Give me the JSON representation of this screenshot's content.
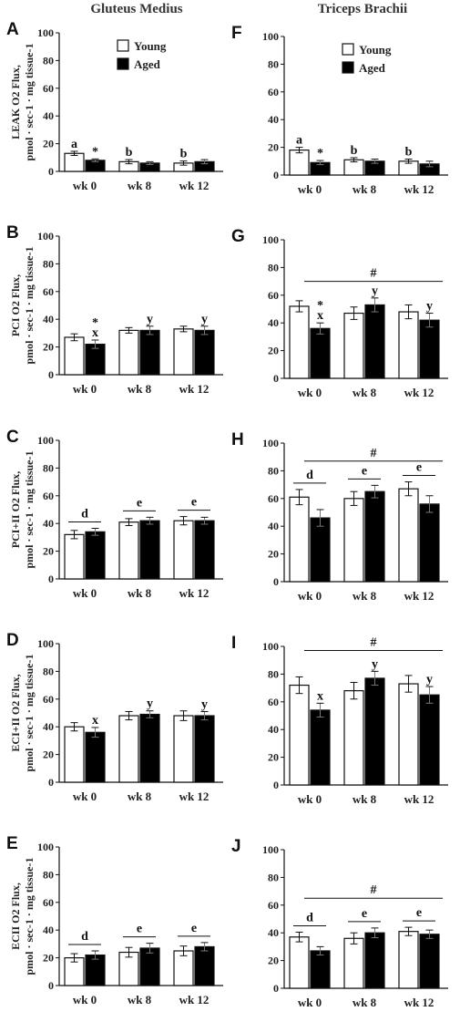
{
  "titles": {
    "left": "Gluteus Medius",
    "right": "Triceps Brachii"
  },
  "legend": {
    "young": "Young",
    "aged": "Aged"
  },
  "colors": {
    "young": "#ffffff",
    "aged": "#000000",
    "axis": "#111111"
  },
  "chart_data": [
    {
      "id": "A",
      "type": "bar",
      "categories": [
        "wk 0",
        "wk 8",
        "wk 12"
      ],
      "ylim": [
        0,
        100
      ],
      "yticks": [
        0,
        20,
        40,
        60,
        80,
        100
      ],
      "ylabel": [
        "LEAK O2 Flux,",
        "pmol · sec-1 · mg tissue-1"
      ],
      "legend": true,
      "series": [
        {
          "name": "Young",
          "values": [
            13,
            7,
            6
          ],
          "err": [
            1.5,
            1.5,
            1.5
          ]
        },
        {
          "name": "Aged",
          "values": [
            8,
            6,
            7
          ],
          "err": [
            1,
            1,
            1.5
          ]
        }
      ],
      "annotations": [
        {
          "cat": 0,
          "series": 0,
          "text": "a"
        },
        {
          "cat": 0,
          "series": 1,
          "text": "*"
        },
        {
          "cat": 1,
          "series": 0,
          "text": "b"
        },
        {
          "cat": 2,
          "series": 0,
          "text": "b"
        }
      ]
    },
    {
      "id": "B",
      "type": "bar",
      "categories": [
        "wk 0",
        "wk 8",
        "wk 12"
      ],
      "ylim": [
        0,
        100
      ],
      "yticks": [
        0,
        20,
        40,
        60,
        80,
        100
      ],
      "ylabel": [
        "PCI O2 Flux,",
        "pmol · sec-1 · mg tissue-1"
      ],
      "series": [
        {
          "name": "Young",
          "values": [
            27,
            32,
            33
          ],
          "err": [
            2.5,
            2,
            2
          ]
        },
        {
          "name": "Aged",
          "values": [
            22,
            32,
            32
          ],
          "err": [
            3,
            3,
            3
          ]
        }
      ],
      "annotations": [
        {
          "cat": 0,
          "series": 1,
          "text": "x"
        },
        {
          "cat": 0,
          "series": 1,
          "text": "*"
        },
        {
          "cat": 1,
          "series": 1,
          "text": "y"
        },
        {
          "cat": 2,
          "series": 1,
          "text": "y"
        }
      ]
    },
    {
      "id": "C",
      "type": "bar",
      "categories": [
        "wk 0",
        "wk 8",
        "wk 12"
      ],
      "ylim": [
        0,
        100
      ],
      "yticks": [
        0,
        20,
        40,
        60,
        80,
        100
      ],
      "ylabel": [
        "PCI+II O2 Flux,",
        "pmol · sec-1 · mg tissue-1"
      ],
      "series": [
        {
          "name": "Young",
          "values": [
            32,
            41,
            42
          ],
          "err": [
            3,
            2.5,
            3
          ]
        },
        {
          "name": "Aged",
          "values": [
            34,
            42,
            42
          ],
          "err": [
            2.5,
            2.5,
            2.5
          ]
        }
      ],
      "group_letters": [
        "d",
        "e",
        "e"
      ]
    },
    {
      "id": "D",
      "type": "bar",
      "categories": [
        "wk 0",
        "wk 8",
        "wk 12"
      ],
      "ylim": [
        0,
        100
      ],
      "yticks": [
        0,
        20,
        40,
        60,
        80,
        100
      ],
      "ylabel": [
        "ECI+II O2 Flux,",
        "pmol · sec-1 · mg tissue-1"
      ],
      "series": [
        {
          "name": "Young",
          "values": [
            40,
            48,
            48
          ],
          "err": [
            3,
            3,
            3.5
          ]
        },
        {
          "name": "Aged",
          "values": [
            36,
            49,
            48
          ],
          "err": [
            3.5,
            2.5,
            3
          ]
        }
      ],
      "annotations": [
        {
          "cat": 0,
          "series": 1,
          "text": "x"
        },
        {
          "cat": 1,
          "series": 1,
          "text": "y"
        },
        {
          "cat": 2,
          "series": 1,
          "text": "y"
        }
      ]
    },
    {
      "id": "E",
      "type": "bar",
      "categories": [
        "wk 0",
        "wk 8",
        "wk 12"
      ],
      "ylim": [
        0,
        100
      ],
      "yticks": [
        0,
        20,
        40,
        60,
        80,
        100
      ],
      "ylabel": [
        "ECII O2 Flux,",
        "pmol · sec-1 · mg tissue-1"
      ],
      "series": [
        {
          "name": "Young",
          "values": [
            20,
            24,
            25
          ],
          "err": [
            3,
            3.5,
            3.5
          ]
        },
        {
          "name": "Aged",
          "values": [
            22,
            27,
            28
          ],
          "err": [
            3,
            3.5,
            3
          ]
        }
      ],
      "group_letters": [
        "d",
        "e",
        "e"
      ]
    },
    {
      "id": "F",
      "type": "bar",
      "categories": [
        "wk 0",
        "wk 8",
        "wk 12"
      ],
      "ylim": [
        0,
        100
      ],
      "yticks": [
        0,
        20,
        40,
        60,
        80,
        100
      ],
      "legend": true,
      "series": [
        {
          "name": "Young",
          "values": [
            18,
            11,
            10
          ],
          "err": [
            2,
            1.5,
            1.5
          ]
        },
        {
          "name": "Aged",
          "values": [
            9,
            10,
            8
          ],
          "err": [
            1.5,
            1.5,
            2
          ]
        }
      ],
      "annotations": [
        {
          "cat": 0,
          "series": 0,
          "text": "a"
        },
        {
          "cat": 0,
          "series": 1,
          "text": "*"
        },
        {
          "cat": 1,
          "series": 0,
          "text": "b"
        },
        {
          "cat": 2,
          "series": 0,
          "text": "b"
        }
      ]
    },
    {
      "id": "G",
      "type": "bar",
      "categories": [
        "wk 0",
        "wk 8",
        "wk 12"
      ],
      "ylim": [
        0,
        100
      ],
      "yticks": [
        0,
        20,
        40,
        60,
        80,
        100
      ],
      "series": [
        {
          "name": "Young",
          "values": [
            52,
            47,
            48
          ],
          "err": [
            4,
            4.5,
            5
          ]
        },
        {
          "name": "Aged",
          "values": [
            36,
            53,
            42
          ],
          "err": [
            4,
            5,
            5
          ]
        }
      ],
      "annotations": [
        {
          "cat": 0,
          "series": 1,
          "text": "x"
        },
        {
          "cat": 0,
          "series": 1,
          "text": "*"
        },
        {
          "cat": 1,
          "series": 1,
          "text": "y"
        },
        {
          "cat": 2,
          "series": 1,
          "text": "y"
        }
      ],
      "overall": {
        "text": "#",
        "y": 70
      }
    },
    {
      "id": "H",
      "type": "bar",
      "categories": [
        "wk 0",
        "wk 8",
        "wk 12"
      ],
      "ylim": [
        0,
        100
      ],
      "yticks": [
        0,
        20,
        40,
        60,
        80,
        100
      ],
      "series": [
        {
          "name": "Young",
          "values": [
            61,
            60,
            67
          ],
          "err": [
            5.5,
            5,
            5
          ]
        },
        {
          "name": "Aged",
          "values": [
            46,
            65,
            56
          ],
          "err": [
            6,
            4.5,
            6
          ]
        }
      ],
      "group_letters": [
        "d",
        "e",
        "e"
      ],
      "overall": {
        "text": "#",
        "y": 87
      }
    },
    {
      "id": "I",
      "type": "bar",
      "categories": [
        "wk 0",
        "wk 8",
        "wk 12"
      ],
      "ylim": [
        0,
        100
      ],
      "yticks": [
        0,
        20,
        40,
        60,
        80,
        100
      ],
      "series": [
        {
          "name": "Young",
          "values": [
            72,
            68,
            73
          ],
          "err": [
            6,
            6,
            6
          ]
        },
        {
          "name": "Aged",
          "values": [
            54,
            77,
            65
          ],
          "err": [
            5,
            5,
            6
          ]
        }
      ],
      "annotations": [
        {
          "cat": 0,
          "series": 1,
          "text": "x"
        },
        {
          "cat": 1,
          "series": 1,
          "text": "y"
        },
        {
          "cat": 2,
          "series": 1,
          "text": "y"
        }
      ],
      "overall": {
        "text": "#",
        "y": 97
      }
    },
    {
      "id": "J",
      "type": "bar",
      "categories": [
        "wk 0",
        "wk 8",
        "wk 12"
      ],
      "ylim": [
        0,
        100
      ],
      "yticks": [
        0,
        20,
        40,
        60,
        80,
        100
      ],
      "series": [
        {
          "name": "Young",
          "values": [
            37,
            36,
            41
          ],
          "err": [
            3.5,
            4,
            3
          ]
        },
        {
          "name": "Aged",
          "values": [
            27,
            40,
            39
          ],
          "err": [
            3,
            3.5,
            3
          ]
        }
      ],
      "group_letters": [
        "d",
        "e",
        "e"
      ],
      "overall": {
        "text": "#",
        "y": 65
      }
    }
  ]
}
